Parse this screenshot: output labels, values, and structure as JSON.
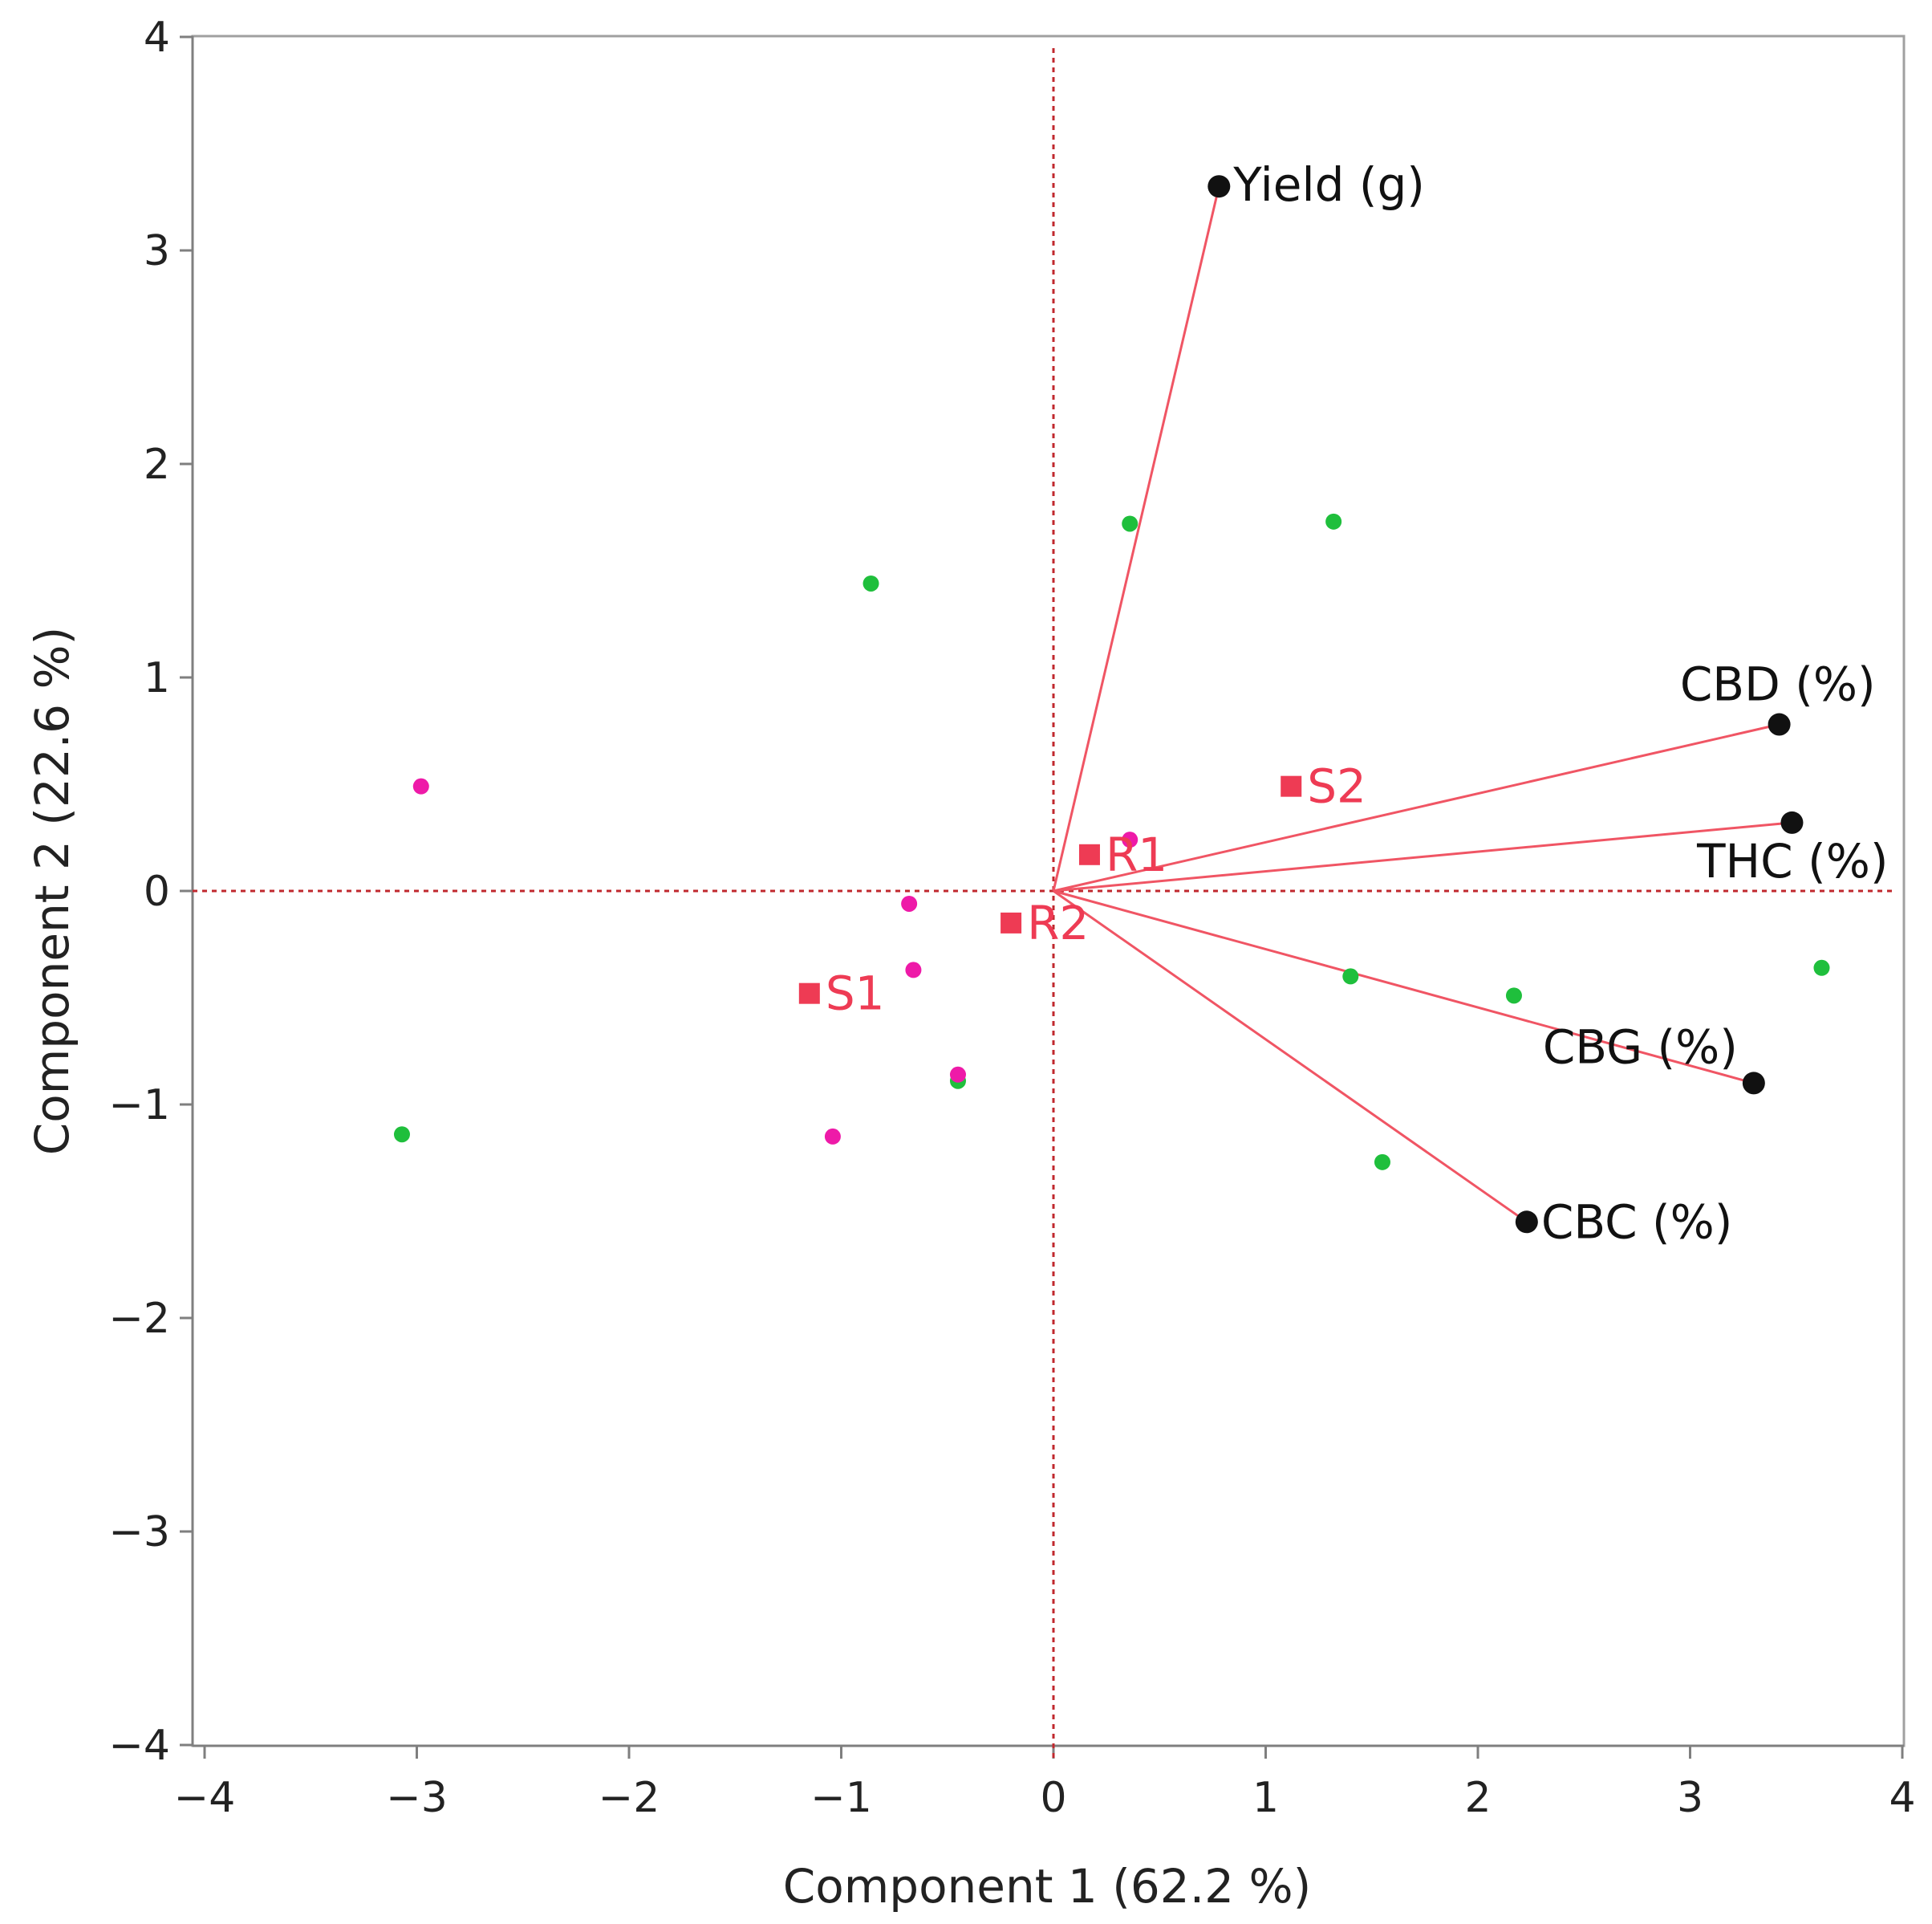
{
  "chart_data": {
    "type": "scatter",
    "subtype": "pca-biplot",
    "title": "",
    "xlabel": "Component 1  (62.2 %)",
    "ylabel": "Component 2  (22.6 %)",
    "xlim": [
      -4,
      4
    ],
    "ylim": [
      -4,
      4
    ],
    "x_ticks": [
      -4,
      -3,
      -2,
      -1,
      0,
      1,
      2,
      3,
      4
    ],
    "y_ticks": [
      -4,
      -3,
      -2,
      -1,
      0,
      1,
      2,
      3,
      4
    ],
    "x_tick_labels": [
      "−4",
      "−3",
      "−2",
      "−1",
      "0",
      "1",
      "2",
      "3",
      "4"
    ],
    "y_tick_labels": [
      "−4",
      "−3",
      "−2",
      "−1",
      "0",
      "1",
      "2",
      "3",
      "4"
    ],
    "grid": false,
    "reference_lines": {
      "x": 0,
      "y": 0
    },
    "colors": {
      "axis": "#7f7f7f",
      "frame": "#a0a0a0",
      "reference": "#c0282e",
      "arrow": "#f05564",
      "arrow_head": "#e8384a",
      "loading_point": "#111111",
      "group_marker": "#ee3b54",
      "green_points": "#1fbf3c",
      "magenta_points": "#ee1aa8"
    },
    "loadings": [
      {
        "name": "Yield (g)",
        "x": 0.78,
        "y": 3.3
      },
      {
        "name": "CBD (%)",
        "x": 3.42,
        "y": 0.78
      },
      {
        "name": "THC (%)",
        "x": 3.48,
        "y": 0.32
      },
      {
        "name": "CBG (%)",
        "x": 3.3,
        "y": -0.9
      },
      {
        "name": "CBC (%)",
        "x": 2.23,
        "y": -1.55
      }
    ],
    "groups": [
      {
        "name": "S2",
        "x": 1.12,
        "y": 0.49
      },
      {
        "name": "R1",
        "x": 0.17,
        "y": 0.17
      },
      {
        "name": "R2",
        "x": -0.2,
        "y": -0.15
      },
      {
        "name": "S1",
        "x": -1.15,
        "y": -0.48
      }
    ],
    "series": [
      {
        "name": "green",
        "points": [
          [
            0.36,
            1.72
          ],
          [
            1.32,
            1.73
          ],
          [
            -0.86,
            1.44
          ],
          [
            1.4,
            -0.4
          ],
          [
            2.17,
            -0.49
          ],
          [
            3.62,
            -0.36
          ],
          [
            -0.45,
            -0.89
          ],
          [
            -3.07,
            -1.14
          ],
          [
            1.55,
            -1.27
          ]
        ]
      },
      {
        "name": "magenta",
        "points": [
          [
            -2.98,
            0.49
          ],
          [
            0.36,
            0.24
          ],
          [
            -0.68,
            -0.06
          ],
          [
            -0.66,
            -0.37
          ],
          [
            -0.45,
            -0.86
          ],
          [
            -1.04,
            -1.15
          ]
        ]
      }
    ]
  }
}
